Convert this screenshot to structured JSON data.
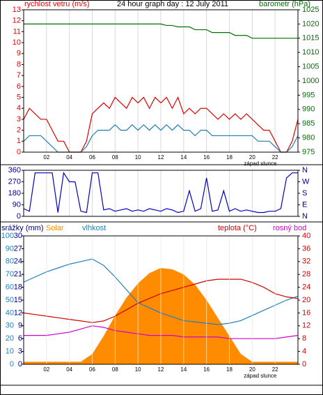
{
  "chart_data": [
    {
      "type": "line",
      "title": "24 hour graph day : 12 July 2011",
      "ylabel": "rychlost vetru (m/s)",
      "y2label": "barometr (hPa)",
      "ycolor": "#e00000",
      "y2color": "#007000",
      "x": [
        0,
        0.5,
        1,
        1.5,
        2,
        2.5,
        3,
        3.5,
        4,
        4.5,
        5,
        5.5,
        6,
        6.5,
        7,
        7.5,
        8,
        8.5,
        9,
        9.5,
        10,
        10.5,
        11,
        11.5,
        12,
        12.5,
        13,
        13.5,
        14,
        14.5,
        15,
        15.5,
        16,
        16.5,
        17,
        17.5,
        18,
        18.5,
        19,
        19.5,
        20,
        20.5,
        21,
        21.5,
        22,
        22.5,
        23,
        23.5,
        24
      ],
      "xlim": [
        0,
        24
      ],
      "xticks": [
        {
          "value": 2,
          "label": "02"
        },
        {
          "value": 4,
          "label": "04"
        },
        {
          "value": 6,
          "label": "06"
        },
        {
          "value": 8,
          "label": "08"
        },
        10,
        12,
        14,
        16,
        18,
        20,
        22
      ],
      "annotation": {
        "text": "západ slunce",
        "x": 20.7
      },
      "ylim": [
        0,
        13
      ],
      "yticks": [
        0,
        1,
        2,
        3,
        4,
        5,
        6,
        7,
        8,
        9,
        10,
        11,
        12,
        13
      ],
      "y2lim": [
        975,
        1025
      ],
      "y2ticks": [
        975,
        980,
        985,
        990,
        995,
        1000,
        1005,
        1010,
        1015,
        1020,
        1025
      ],
      "series": [
        {
          "color": "#e00000",
          "values": [
            3,
            4,
            3.5,
            3,
            3,
            2,
            1,
            1,
            0,
            0,
            0,
            1,
            3.5,
            4,
            4.5,
            4,
            5,
            4.5,
            4,
            5,
            4.5,
            5,
            4,
            5,
            4.5,
            5,
            4,
            5,
            3.5,
            4,
            3.5,
            4,
            4,
            3.5,
            3,
            3.5,
            3,
            3.5,
            3,
            3.5,
            3,
            2.5,
            2,
            2,
            1,
            0,
            0,
            1,
            3
          ]
        },
        {
          "color": "#1e7fb0",
          "values": [
            1,
            1.5,
            1.5,
            1.5,
            1,
            0.5,
            0,
            0,
            0,
            0,
            0,
            0.5,
            1.5,
            2,
            2,
            2,
            2.5,
            2,
            2,
            2.5,
            2,
            2.5,
            2,
            2.5,
            2,
            2.5,
            2,
            2.5,
            2,
            2,
            1.5,
            2,
            2,
            1.5,
            1.5,
            1.5,
            1.5,
            1.5,
            1.5,
            1.5,
            1.5,
            1,
            1,
            1,
            0.5,
            0,
            0,
            0.5,
            1.5
          ]
        },
        {
          "color": "#007000",
          "axis": "y2",
          "values": [
            1020,
            1020,
            1020,
            1020,
            1020,
            1020,
            1020,
            1020,
            1020,
            1020,
            1020,
            1020,
            1020,
            1020,
            1020,
            1020,
            1020,
            1020,
            1020,
            1020,
            1020,
            1020,
            1020,
            1020,
            1020,
            1019.5,
            1019.5,
            1019,
            1019,
            1019,
            1018,
            1018,
            1018,
            1017,
            1017,
            1017,
            1017,
            1016,
            1016,
            1016,
            1015,
            1015,
            1015,
            1015,
            1015,
            1015,
            1015,
            1015,
            1015
          ]
        }
      ]
    },
    {
      "type": "line",
      "ycolor": "#000080",
      "y2color": "#000080",
      "x": [
        0,
        0.5,
        1,
        1.5,
        2,
        2.5,
        3,
        3.5,
        4,
        4.5,
        5,
        5.5,
        6,
        6.5,
        7,
        7.5,
        8,
        8.5,
        9,
        9.5,
        10,
        10.5,
        11,
        11.5,
        12,
        12.5,
        13,
        13.5,
        14,
        14.5,
        15,
        15.5,
        16,
        16.5,
        17,
        17.5,
        18,
        18.5,
        19,
        19.5,
        20,
        20.5,
        21,
        21.5,
        22,
        22.5,
        23,
        23.5,
        24
      ],
      "xlim": [
        0,
        24
      ],
      "xticks": [
        2,
        4,
        6,
        8,
        10,
        12,
        14,
        16,
        18,
        20,
        22
      ],
      "xtick_labels": false,
      "ylim": [
        0,
        360
      ],
      "yticks": [
        0,
        90,
        180,
        270,
        360
      ],
      "y2lim": [
        0,
        360
      ],
      "y2ticks": [
        {
          "value": 0,
          "label": "N"
        },
        {
          "value": 90,
          "label": "E"
        },
        {
          "value": 180,
          "label": "S"
        },
        {
          "value": 270,
          "label": "W"
        },
        {
          "value": 360,
          "label": "N"
        }
      ],
      "series": [
        {
          "color": "#0000c0",
          "values": [
            60,
            40,
            340,
            340,
            340,
            340,
            30,
            340,
            270,
            270,
            40,
            30,
            340,
            340,
            50,
            60,
            40,
            50,
            60,
            40,
            50,
            40,
            60,
            50,
            40,
            60,
            50,
            30,
            40,
            200,
            40,
            60,
            300,
            40,
            50,
            200,
            40,
            60,
            40,
            50,
            40,
            30,
            30,
            40,
            40,
            60,
            300,
            340,
            340
          ]
        }
      ]
    },
    {
      "type": "line",
      "ycolor": "#1e7fc0",
      "y2color": "#d00000",
      "y3color": "#000080",
      "x": [
        0,
        1,
        2,
        3,
        4,
        5,
        6,
        7,
        8,
        9,
        10,
        11,
        12,
        13,
        14,
        15,
        16,
        17,
        18,
        19,
        20,
        21,
        22,
        23,
        24
      ],
      "xlim": [
        0,
        24
      ],
      "xticks": [
        {
          "value": 2,
          "label": "02"
        },
        {
          "value": 4,
          "label": "04"
        },
        {
          "value": 6,
          "label": "06"
        },
        {
          "value": 8,
          "label": "08"
        },
        10,
        12,
        14,
        16,
        18,
        20,
        22
      ],
      "annotation": {
        "text": "západ slunce",
        "x": 20.7
      },
      "y3label": "srážky (mm)",
      "y3lim": [
        0,
        30
      ],
      "y3ticks": [
        0,
        3,
        6,
        9,
        12,
        15,
        18,
        21,
        24,
        27,
        30
      ],
      "ylim": [
        0,
        100
      ],
      "yticks": [
        0,
        10,
        20,
        30,
        40,
        50,
        60,
        70,
        80,
        90,
        100
      ],
      "y2lim": [
        0,
        40
      ],
      "y2ticks": [
        0,
        4,
        8,
        12,
        16,
        20,
        24,
        28,
        32,
        36,
        40
      ],
      "series": [
        {
          "name": "Solar",
          "kind": "area",
          "color": "#ff8c00",
          "values": [
            2,
            2,
            2,
            2,
            2,
            2,
            8,
            22,
            38,
            52,
            63,
            71,
            75,
            74,
            70,
            62,
            50,
            36,
            22,
            8,
            2,
            2,
            2,
            2,
            2
          ]
        },
        {
          "name": "vlhkost",
          "color": "#1e7fc0",
          "values": [
            64,
            68,
            72,
            75,
            78,
            80,
            82,
            77,
            68,
            58,
            48,
            44,
            40,
            37,
            34,
            33,
            32,
            31,
            32,
            34,
            38,
            42,
            46,
            50,
            53
          ]
        },
        {
          "name": "teplota (°C)",
          "axis": "y2",
          "color": "#d00000",
          "values": [
            16,
            15.5,
            15,
            14.5,
            14,
            13.5,
            13,
            13.5,
            15,
            17,
            19,
            20.5,
            22,
            23,
            24,
            25,
            26,
            26.5,
            26.5,
            26.5,
            25.5,
            24,
            22,
            21,
            20.5
          ]
        },
        {
          "name": "rosný bod",
          "axis": "y2",
          "color": "#d000d0",
          "values": [
            9,
            9,
            9,
            9.5,
            10,
            11,
            12,
            11.5,
            10.5,
            10,
            9.5,
            9,
            9,
            9,
            8.5,
            8.5,
            8.5,
            8.5,
            8,
            8,
            8,
            8,
            8,
            8.5,
            9
          ]
        }
      ]
    }
  ]
}
